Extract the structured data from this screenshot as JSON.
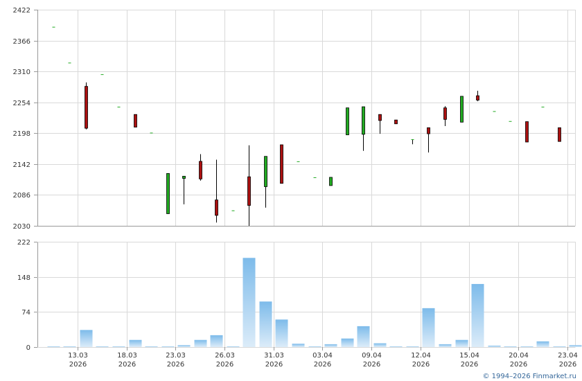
{
  "copyright": "© 1994–2026 Finmarket.ru",
  "chart_data": {
    "type": "candlestick",
    "grid": true,
    "price_axis": {
      "ticks": [
        2030,
        2086,
        2142,
        2198,
        2254,
        2310,
        2366,
        2422
      ],
      "range": [
        2030,
        2422
      ]
    },
    "volume_axis": {
      "ticks": [
        0,
        74,
        148,
        222
      ],
      "range": [
        0,
        222
      ]
    },
    "x_ticks": [
      {
        "slot": 1.5,
        "date": "13.03",
        "year": "2026"
      },
      {
        "slot": 4.5,
        "date": "18.03",
        "year": "2026"
      },
      {
        "slot": 7.5,
        "date": "23.03",
        "year": "2026"
      },
      {
        "slot": 10.5,
        "date": "26.03",
        "year": "2026"
      },
      {
        "slot": 13.5,
        "date": "31.03",
        "year": "2026"
      },
      {
        "slot": 16.5,
        "date": "03.04",
        "year": "2026"
      },
      {
        "slot": 19.5,
        "date": "09.04",
        "year": "2026"
      },
      {
        "slot": 22.5,
        "date": "12.04",
        "year": "2026"
      },
      {
        "slot": 25.5,
        "date": "15.04",
        "year": "2026"
      },
      {
        "slot": 28.5,
        "date": "20.04",
        "year": "2026"
      },
      {
        "slot": 31.5,
        "date": "23.04",
        "year": "2026"
      }
    ],
    "candles": [
      {
        "o": 2391,
        "h": 2391,
        "l": 2391,
        "c": 2391,
        "v": 1
      },
      {
        "o": 2326,
        "h": 2326,
        "l": 2326,
        "c": 2326,
        "v": 1
      },
      {
        "o": 2283,
        "h": 2290,
        "l": 2205,
        "c": 2207,
        "v": 36
      },
      {
        "o": 2305,
        "h": 2305,
        "l": 2305,
        "c": 2305,
        "v": 1
      },
      {
        "o": 2246,
        "h": 2246,
        "l": 2246,
        "c": 2246,
        "v": 1
      },
      {
        "o": 2232,
        "h": 2232,
        "l": 2209,
        "c": 2209,
        "v": 15
      },
      {
        "o": 2199,
        "h": 2199,
        "l": 2199,
        "c": 2199,
        "v": 1
      },
      {
        "o": 2052,
        "h": 2125,
        "l": 2052,
        "c": 2125,
        "v": 1
      },
      {
        "o": 2116,
        "h": 2120,
        "l": 2069,
        "c": 2120,
        "v": 4
      },
      {
        "o": 2147,
        "h": 2160,
        "l": 2112,
        "c": 2115,
        "v": 15
      },
      {
        "o": 2077,
        "h": 2150,
        "l": 2036,
        "c": 2049,
        "v": 25
      },
      {
        "o": 2058,
        "h": 2058,
        "l": 2058,
        "c": 2058,
        "v": 1
      },
      {
        "o": 2119,
        "h": 2176,
        "l": 2030,
        "c": 2067,
        "v": 188
      },
      {
        "o": 2101,
        "h": 2156,
        "l": 2063,
        "c": 2156,
        "v": 96
      },
      {
        "o": 2177,
        "h": 2177,
        "l": 2107,
        "c": 2107,
        "v": 58
      },
      {
        "o": 2147,
        "h": 2147,
        "l": 2147,
        "c": 2147,
        "v": 7
      },
      {
        "o": 2118,
        "h": 2118,
        "l": 2118,
        "c": 2118,
        "v": 1
      },
      {
        "o": 2103,
        "h": 2118,
        "l": 2103,
        "c": 2118,
        "v": 6
      },
      {
        "o": 2195,
        "h": 2244,
        "l": 2195,
        "c": 2244,
        "v": 18
      },
      {
        "o": 2196,
        "h": 2246,
        "l": 2166,
        "c": 2246,
        "v": 44
      },
      {
        "o": 2232,
        "h": 2232,
        "l": 2197,
        "c": 2221,
        "v": 8
      },
      {
        "o": 2222,
        "h": 2222,
        "l": 2215,
        "c": 2215,
        "v": 1
      },
      {
        "o": 2187,
        "h": 2187,
        "l": 2178,
        "c": 2187,
        "v": 1
      },
      {
        "o": 2208,
        "h": 2208,
        "l": 2163,
        "c": 2197,
        "v": 82
      },
      {
        "o": 2244,
        "h": 2247,
        "l": 2211,
        "c": 2223,
        "v": 6
      },
      {
        "o": 2218,
        "h": 2265,
        "l": 2218,
        "c": 2265,
        "v": 15
      },
      {
        "o": 2266,
        "h": 2275,
        "l": 2256,
        "c": 2258,
        "v": 133
      },
      {
        "o": 2238,
        "h": 2238,
        "l": 2238,
        "c": 2238,
        "v": 3
      },
      {
        "o": 2220,
        "h": 2220,
        "l": 2220,
        "c": 2220,
        "v": 1
      },
      {
        "o": 2219,
        "h": 2219,
        "l": 2182,
        "c": 2182,
        "v": 1
      },
      {
        "o": 2246,
        "h": 2246,
        "l": 2246,
        "c": 2246,
        "v": 12
      },
      {
        "o": 2208,
        "h": 2208,
        "l": 2183,
        "c": 2183,
        "v": 1
      },
      {
        "v": 4
      }
    ]
  }
}
